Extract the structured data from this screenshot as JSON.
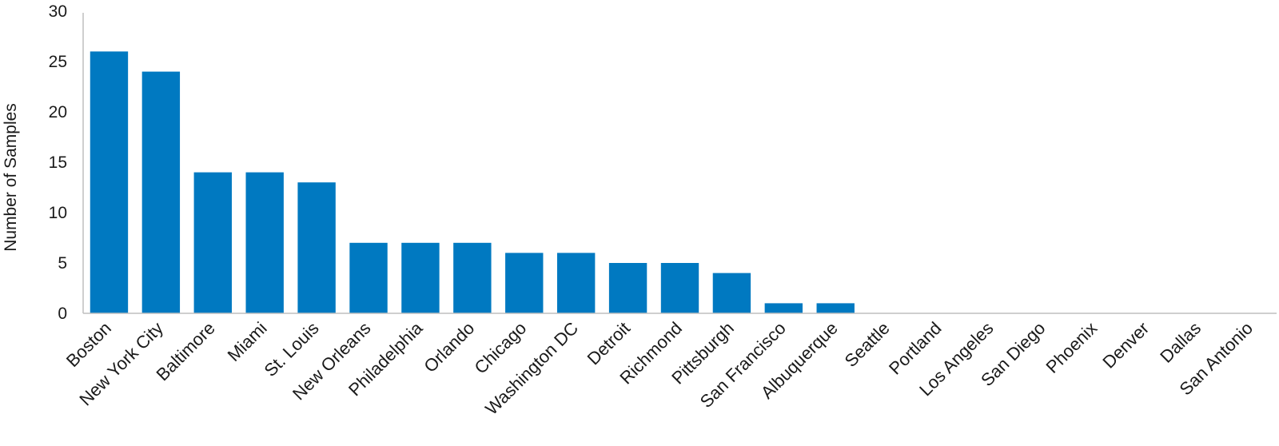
{
  "chart_data": {
    "type": "bar",
    "title": "",
    "xlabel": "",
    "ylabel": "Number of Samples",
    "ylim": [
      0,
      30
    ],
    "yticks": [
      0,
      5,
      10,
      15,
      20,
      25,
      30
    ],
    "grid": false,
    "legend": "none",
    "bar_color": "#0079C1",
    "axis_color": "#BFBFBF",
    "categories": [
      "Boston",
      "New York City",
      "Baltimore",
      "Miami",
      "St. Louis",
      "New Orleans",
      "Philadelphia",
      "Orlando",
      "Chicago",
      "Washington DC",
      "Detroit",
      "Richmond",
      "Pittsburgh",
      "San Francisco",
      "Albuquerque",
      "Seattle",
      "Portland",
      "Los Angeles",
      "San Diego",
      "Phoenix",
      "Denver",
      "Dallas",
      "San Antonio"
    ],
    "values": [
      26,
      24,
      14,
      14,
      13,
      7,
      7,
      7,
      6,
      6,
      5,
      5,
      4,
      1,
      1,
      0,
      0,
      0,
      0,
      0,
      0,
      0,
      0
    ]
  }
}
